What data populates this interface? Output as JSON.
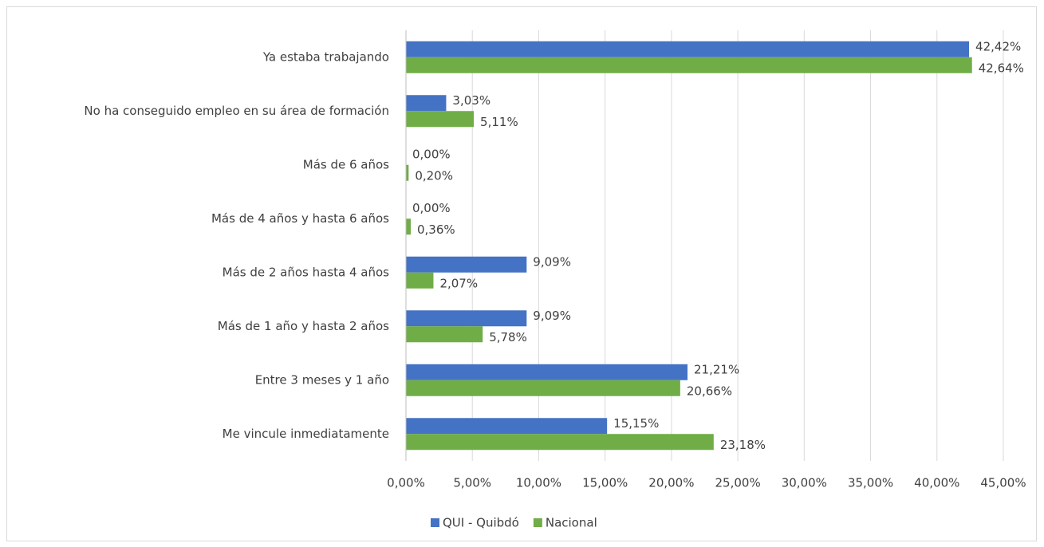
{
  "chart_data": {
    "type": "bar",
    "orientation": "horizontal",
    "categories": [
      "Ya estaba trabajando",
      "No ha conseguido empleo en su área de formación",
      "Más de 6 años",
      "Más de 4 años y hasta 6 años",
      "Más de 2 años hasta 4 años",
      "Más de 1 año y hasta 2 años",
      "Entre 3 meses y 1 año",
      "Me vincule inmediatamente"
    ],
    "series": [
      {
        "name": "QUI - Quibdó",
        "color": "#4472c4",
        "values": [
          42.42,
          3.03,
          0,
          0,
          9.09,
          9.09,
          21.21,
          15.15
        ],
        "value_labels": [
          "42,42%",
          "3,03%",
          "0,00%",
          "0,00%",
          "9,09%",
          "9,09%",
          "21,21%",
          "15,15%"
        ]
      },
      {
        "name": "Nacional",
        "color": "#70ad47",
        "values": [
          42.64,
          5.11,
          0.2,
          0.36,
          2.07,
          5.78,
          20.66,
          23.18
        ],
        "value_labels": [
          "42,64%",
          "5,11%",
          "0,20%",
          "0,36%",
          "2,07%",
          "5,78%",
          "20,66%",
          "23,18%"
        ]
      }
    ],
    "xlim": [
      0,
      45
    ],
    "xticks": [
      {
        "value": 0,
        "label": "0,00%"
      },
      {
        "value": 5,
        "label": "5,00%"
      },
      {
        "value": 10,
        "label": "10,00%"
      },
      {
        "value": 15,
        "label": "15,00%"
      },
      {
        "value": 20,
        "label": "20,00%"
      },
      {
        "value": 25,
        "label": "25,00%"
      },
      {
        "value": 30,
        "label": "30,00%"
      },
      {
        "value": 35,
        "label": "35,00%"
      },
      {
        "value": 40,
        "label": "40,00%"
      },
      {
        "value": 45,
        "label": "45,00%"
      }
    ],
    "grid": true,
    "legend": "bottom"
  }
}
